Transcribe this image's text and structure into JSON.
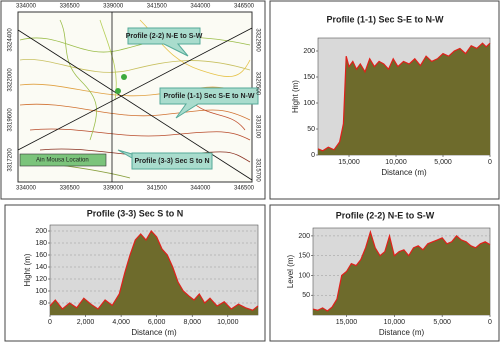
{
  "map": {
    "top_ticks": [
      334000,
      336500,
      339000,
      341500,
      344000,
      346500
    ],
    "bottom_ticks": [
      334000,
      336500,
      339000,
      341500,
      344000,
      346500
    ],
    "left_ticks": [
      3324400,
      3322000,
      3319600,
      3317200
    ],
    "right_ticks": [
      3322900,
      3320500,
      3318100,
      3315700
    ],
    "labels": [
      "Profile (2-2)  N-E to S-W",
      "Profile (1-1)  Sec S-E to N-W",
      "Profile (3-3) Sec S to N",
      "Ain Mousa Location"
    ]
  },
  "chart_data": [
    {
      "type": "area",
      "title": "Profile (1-1)  Sec S-E to N-W",
      "xlabel": "Distance (m)",
      "ylabel": "Hight (m)",
      "x": [
        18300,
        17800,
        17200,
        16600,
        16000,
        15600,
        15300,
        15000,
        14600,
        14200,
        13800,
        13300,
        12800,
        12300,
        11800,
        11300,
        10800,
        10300,
        9800,
        9200,
        8600,
        8000,
        7400,
        6800,
        6200,
        5600,
        5000,
        4400,
        3800,
        3200,
        2600,
        2000,
        1400,
        800,
        400,
        0
      ],
      "values": [
        12,
        8,
        15,
        10,
        25,
        60,
        190,
        170,
        180,
        165,
        175,
        160,
        185,
        170,
        180,
        175,
        165,
        185,
        170,
        180,
        175,
        185,
        172,
        190,
        180,
        185,
        195,
        190,
        200,
        205,
        195,
        210,
        205,
        215,
        208,
        215
      ],
      "xlim": [
        18300,
        0
      ],
      "ylim": [
        0,
        225
      ],
      "xticks": [
        {
          "value": 15000,
          "label": "15,000"
        },
        {
          "value": 10000,
          "label": "10,000"
        },
        {
          "value": 5000,
          "label": "5,000"
        },
        0
      ],
      "yticks": [
        0,
        50,
        100,
        150,
        200
      ],
      "color": "#6e6b2c",
      "line_color": "#e0201b",
      "grid": false
    },
    {
      "type": "area",
      "title": "Profile (3-3) Sec S to N",
      "xlabel": "Distance (m)",
      "ylabel": "Hight (m)",
      "x": [
        0,
        300,
        700,
        1100,
        1500,
        1900,
        2300,
        2700,
        3100,
        3500,
        3900,
        4200,
        4500,
        4800,
        5100,
        5400,
        5700,
        6000,
        6300,
        6600,
        6900,
        7200,
        7500,
        7800,
        8100,
        8400,
        8700,
        9000,
        9400,
        9800,
        10200,
        10600,
        11000,
        11400,
        11700
      ],
      "values": [
        75,
        85,
        70,
        80,
        72,
        88,
        78,
        70,
        85,
        76,
        95,
        130,
        160,
        185,
        195,
        185,
        200,
        190,
        170,
        160,
        140,
        115,
        100,
        92,
        85,
        95,
        80,
        88,
        75,
        82,
        70,
        78,
        72,
        68,
        75
      ],
      "xlim": [
        0,
        11700
      ],
      "ylim": [
        60,
        210
      ],
      "xticks": [
        0,
        {
          "value": 2000,
          "label": "2,000"
        },
        {
          "value": 4000,
          "label": "4,000"
        },
        {
          "value": 6000,
          "label": "6,000"
        },
        {
          "value": 8000,
          "label": "8,000"
        },
        {
          "value": 10000,
          "label": "10,000"
        }
      ],
      "yticks": [
        80,
        100,
        120,
        140,
        160,
        180,
        200
      ],
      "color": "#6e6b2c",
      "line_color": "#e0201b",
      "grid": true
    },
    {
      "type": "area",
      "title": "Profile (2-2)  N-E to S-W",
      "xlabel": "Distance (m)",
      "ylabel": "Level (m)",
      "x": [
        18500,
        18000,
        17500,
        17000,
        16500,
        16000,
        15500,
        15000,
        14500,
        14000,
        13500,
        13000,
        12500,
        12000,
        11500,
        11000,
        10500,
        10000,
        9500,
        9000,
        8500,
        8000,
        7500,
        7000,
        6500,
        6000,
        5500,
        5000,
        4500,
        4000,
        3500,
        3000,
        2500,
        2000,
        1500,
        1000,
        500,
        0
      ],
      "values": [
        15,
        12,
        18,
        10,
        20,
        40,
        100,
        110,
        130,
        125,
        140,
        170,
        210,
        170,
        150,
        160,
        200,
        150,
        160,
        165,
        150,
        170,
        175,
        165,
        180,
        185,
        190,
        195,
        180,
        185,
        200,
        190,
        185,
        175,
        170,
        180,
        185,
        178
      ],
      "xlim": [
        18500,
        0
      ],
      "ylim": [
        0,
        220
      ],
      "xticks": [
        {
          "value": 15000,
          "label": "15,000"
        },
        {
          "value": 10000,
          "label": "10,000"
        },
        {
          "value": 5000,
          "label": "5,000"
        },
        0
      ],
      "yticks": [
        50,
        100,
        150,
        200
      ],
      "color": "#6e6b2c",
      "line_color": "#e0201b",
      "grid": true
    }
  ]
}
